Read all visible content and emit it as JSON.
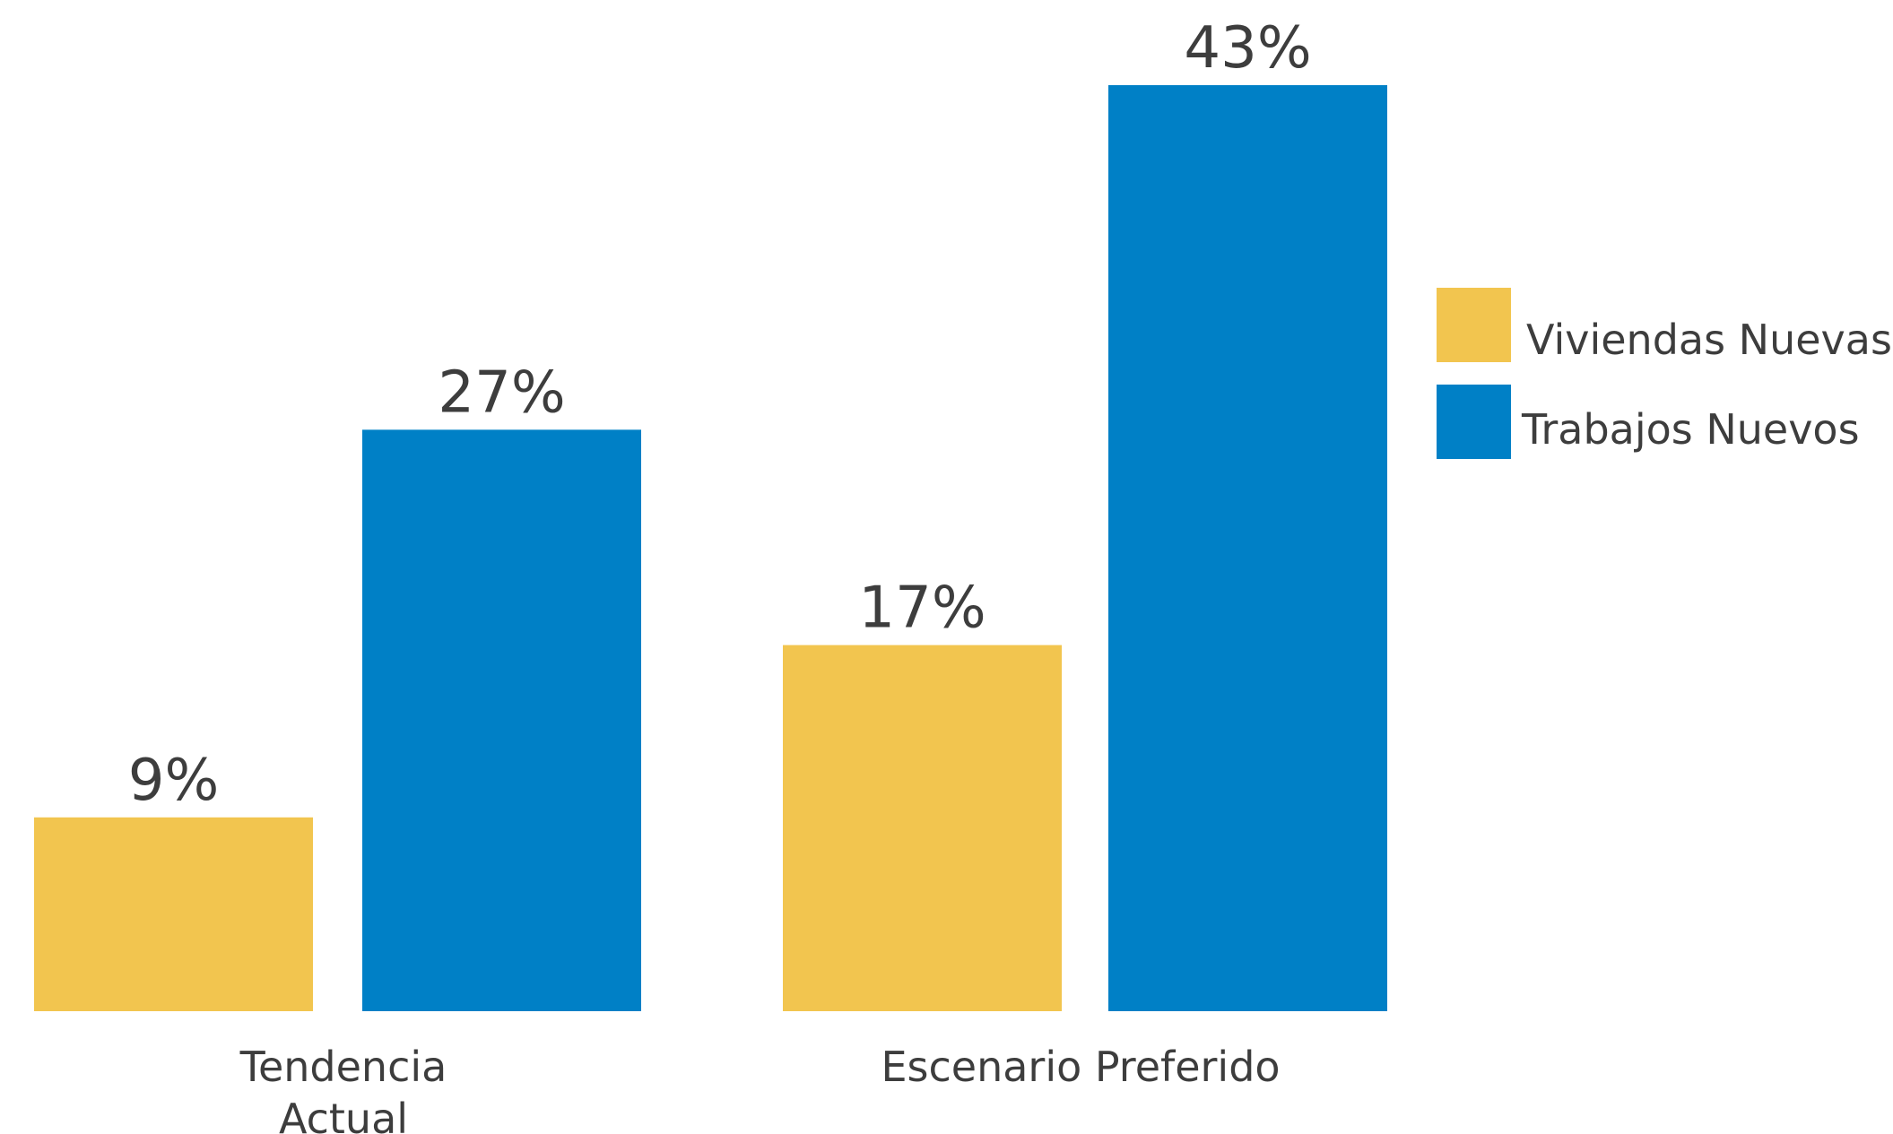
{
  "chart_data": {
    "type": "bar",
    "categories": [
      [
        "Tendencia",
        "Actual"
      ],
      [
        "Escenario Preferido"
      ]
    ],
    "series": [
      {
        "name": "Viviendas Nuevas",
        "color": "#F2C54F",
        "values": [
          9,
          17
        ],
        "labels": [
          "9%",
          "17%"
        ]
      },
      {
        "name": "Trabajos Nuevos",
        "color": "#0080C6",
        "values": [
          27,
          43
        ],
        "labels": [
          "27%",
          "43%"
        ]
      }
    ],
    "ylim": [
      0,
      43
    ],
    "grid": false,
    "legend": "right"
  }
}
